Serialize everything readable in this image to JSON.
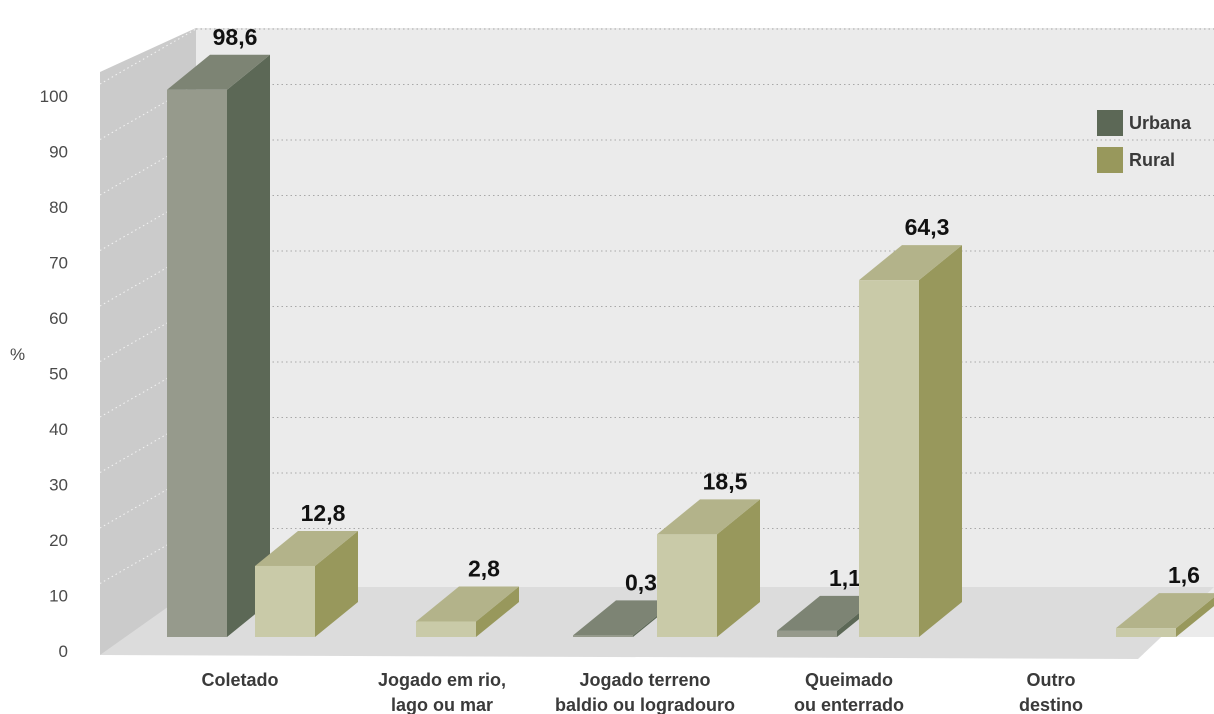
{
  "chart_data": {
    "type": "bar",
    "ylabel": "%",
    "ylim": [
      0,
      100
    ],
    "yticks": [
      "0",
      "10",
      "20",
      "30",
      "40",
      "50",
      "60",
      "70",
      "80",
      "90",
      "100"
    ],
    "categories": [
      [
        "Coletado"
      ],
      [
        "Jogado em rio,",
        "lago ou mar"
      ],
      [
        "Jogado terreno",
        "baldio ou logradouro"
      ],
      [
        "Queimado",
        "ou enterrado"
      ],
      [
        "Outro",
        "destino"
      ]
    ],
    "series": [
      {
        "name": "Urbana",
        "values": [
          98.6,
          null,
          0.3,
          1.1,
          null
        ],
        "labels": [
          "98,6",
          "",
          "0,3",
          "1,1",
          ""
        ],
        "colors": {
          "front": "#969a8c",
          "side": "#5c6856",
          "top": "#7d8474"
        }
      },
      {
        "name": "Rural",
        "values": [
          12.8,
          2.8,
          18.5,
          64.3,
          1.6
        ],
        "labels": [
          "12,8",
          "2,8",
          "18,5",
          "64,3",
          "1,6"
        ],
        "colors": {
          "front": "#c9caa8",
          "side": "#98985c",
          "top": "#b3b38a"
        }
      }
    ],
    "legend": {
      "position": "top-right",
      "items": [
        {
          "label": "Urbana",
          "color": "#5c6856"
        },
        {
          "label": "Rural",
          "color": "#98985c"
        }
      ]
    },
    "grid": true,
    "style": "3d"
  }
}
